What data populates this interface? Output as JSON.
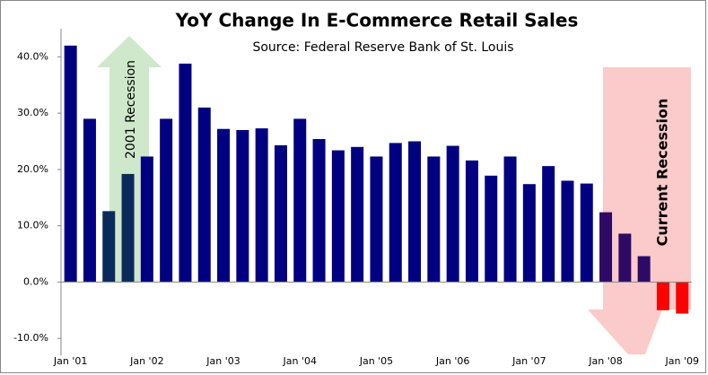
{
  "chart_data": {
    "type": "bar",
    "title": "YoY Change In E-Commerce Retail Sales",
    "subtitle": "Source: Federal Reserve Bank of St. Louis",
    "annotations": [
      "2001 Recession",
      "Current Recession"
    ],
    "categories": [
      "Jan '01",
      null,
      null,
      null,
      "Jan '02",
      null,
      null,
      null,
      "Jan '03",
      null,
      null,
      null,
      "Jan '04",
      null,
      null,
      null,
      "Jan '05",
      null,
      null,
      null,
      "Jan '06",
      null,
      null,
      null,
      "Jan '07",
      null,
      null,
      null,
      "Jan '08",
      null,
      null,
      null,
      "Jan '09"
    ],
    "values": [
      42,
      29,
      12.6,
      19.2,
      22.3,
      29,
      38.8,
      31,
      27.2,
      27,
      27.3,
      24.3,
      29,
      25.4,
      23.4,
      24,
      22.3,
      24.7,
      25,
      22.3,
      24.2,
      21.6,
      18.9,
      22.3,
      17.4,
      20.6,
      18,
      17.5,
      12.4,
      8.6,
      4.6,
      -5,
      -5.6
    ],
    "colors": [
      "#000080",
      "#000080",
      "#0b2a5c",
      "#0b2a5c",
      "#000080",
      "#000080",
      "#000080",
      "#000080",
      "#000080",
      "#000080",
      "#000080",
      "#000080",
      "#000080",
      "#000080",
      "#000080",
      "#000080",
      "#000080",
      "#000080",
      "#000080",
      "#000080",
      "#000080",
      "#000080",
      "#000080",
      "#000080",
      "#000080",
      "#000080",
      "#000080",
      "#000080",
      "#2e0a66",
      "#2e0a66",
      "#2e0a66",
      "#ff0000",
      "#ff0000"
    ],
    "ylim": [
      -13,
      45
    ],
    "yticks": [
      {
        "value": -10,
        "label": "-10.0%"
      },
      {
        "value": 0,
        "label": "0.0%"
      },
      {
        "value": 10,
        "label": "10.0%"
      },
      {
        "value": 20,
        "label": "20.0%"
      },
      {
        "value": 30,
        "label": "30.0%"
      },
      {
        "value": 40,
        "label": "40.0%"
      }
    ]
  }
}
